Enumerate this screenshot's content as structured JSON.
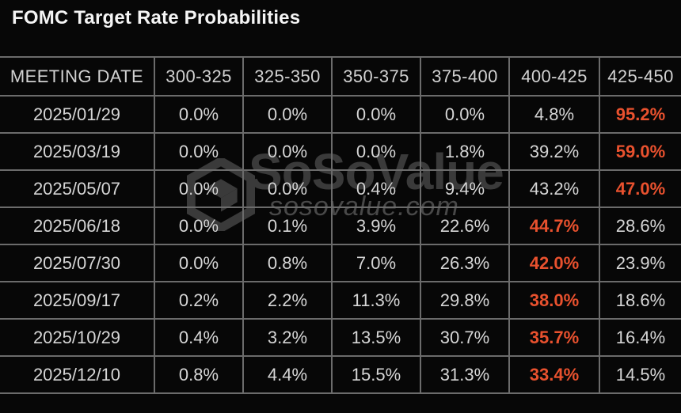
{
  "title": "FOMC Target Rate Probabilities",
  "watermark": {
    "brand": "SoSoValue",
    "domain": "sosovalue.com"
  },
  "colors": {
    "background": "#070707",
    "grid": "#6b6b6b",
    "text": "#d6d6d6",
    "highlight": "#e8512e",
    "watermark": "#3a3a3a"
  },
  "chart_data": {
    "type": "table",
    "title": "FOMC Target Rate Probabilities",
    "columns": [
      "MEETING DATE",
      "300-325",
      "325-350",
      "350-375",
      "375-400",
      "400-425",
      "425-450"
    ],
    "rows": [
      {
        "date": "2025/01/29",
        "values": [
          "0.0%",
          "0.0%",
          "0.0%",
          "0.0%",
          "4.8%",
          "95.2%"
        ],
        "highlight_index": 5
      },
      {
        "date": "2025/03/19",
        "values": [
          "0.0%",
          "0.0%",
          "0.0%",
          "1.8%",
          "39.2%",
          "59.0%"
        ],
        "highlight_index": 5
      },
      {
        "date": "2025/05/07",
        "values": [
          "0.0%",
          "0.0%",
          "0.4%",
          "9.4%",
          "43.2%",
          "47.0%"
        ],
        "highlight_index": 5
      },
      {
        "date": "2025/06/18",
        "values": [
          "0.0%",
          "0.1%",
          "3.9%",
          "22.6%",
          "44.7%",
          "28.6%"
        ],
        "highlight_index": 4
      },
      {
        "date": "2025/07/30",
        "values": [
          "0.0%",
          "0.8%",
          "7.0%",
          "26.3%",
          "42.0%",
          "23.9%"
        ],
        "highlight_index": 4
      },
      {
        "date": "2025/09/17",
        "values": [
          "0.2%",
          "2.2%",
          "11.3%",
          "29.8%",
          "38.0%",
          "18.6%"
        ],
        "highlight_index": 4
      },
      {
        "date": "2025/10/29",
        "values": [
          "0.4%",
          "3.2%",
          "13.5%",
          "30.7%",
          "35.7%",
          "16.4%"
        ],
        "highlight_index": 4
      },
      {
        "date": "2025/12/10",
        "values": [
          "0.8%",
          "4.4%",
          "15.5%",
          "31.3%",
          "33.4%",
          "14.5%"
        ],
        "highlight_index": 4
      }
    ]
  }
}
